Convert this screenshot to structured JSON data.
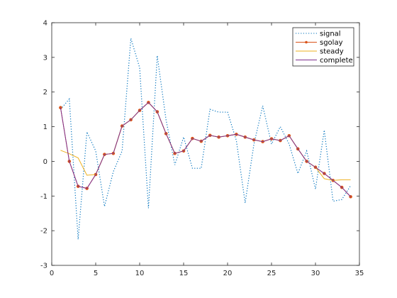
{
  "chart_data": {
    "type": "line",
    "title": "",
    "xlabel": "",
    "ylabel": "",
    "xlim": [
      0,
      35
    ],
    "ylim": [
      -3,
      4
    ],
    "xticks": [
      0,
      5,
      10,
      15,
      20,
      25,
      30,
      35
    ],
    "yticks": [
      -3,
      -2,
      -1,
      0,
      1,
      2,
      3,
      4
    ],
    "grid": false,
    "legend_position": "top-right",
    "x": [
      1,
      2,
      3,
      4,
      5,
      6,
      7,
      8,
      9,
      10,
      11,
      12,
      13,
      14,
      15,
      16,
      17,
      18,
      19,
      20,
      21,
      22,
      23,
      24,
      25,
      26,
      27,
      28,
      29,
      30,
      31,
      32,
      33,
      34
    ],
    "series": [
      {
        "name": "signal",
        "color": "#0072bd",
        "style": "dotted",
        "values": [
          1.5,
          1.8,
          -2.25,
          0.85,
          0.3,
          -1.3,
          -0.3,
          0.3,
          3.55,
          2.7,
          -1.35,
          3.05,
          1.2,
          -0.1,
          0.7,
          -0.2,
          -0.2,
          1.5,
          1.42,
          1.42,
          0.6,
          -1.2,
          0.5,
          1.6,
          0.5,
          1.0,
          0.5,
          -0.35,
          0.3,
          -0.8,
          0.9,
          -1.15,
          -1.1,
          -0.7
        ]
      },
      {
        "name": "sgolay",
        "color": "#d95319",
        "style": "solid-markers",
        "values": [
          1.55,
          0.0,
          -0.72,
          -0.78,
          -0.38,
          0.2,
          0.23,
          1.02,
          1.2,
          1.47,
          1.7,
          1.43,
          0.8,
          0.23,
          0.3,
          0.66,
          0.58,
          0.75,
          0.7,
          0.74,
          0.78,
          0.7,
          0.62,
          0.57,
          0.65,
          0.6,
          0.74,
          0.36,
          0.0,
          -0.17,
          -0.35,
          -0.55,
          -0.75,
          -1.02
        ]
      },
      {
        "name": "steady",
        "color": "#edb120",
        "style": "solid",
        "values": [
          0.32,
          0.22,
          0.1,
          -0.4,
          -0.38,
          0.2,
          0.23,
          1.02,
          1.2,
          1.47,
          1.7,
          1.43,
          0.8,
          0.23,
          0.3,
          0.66,
          0.58,
          0.75,
          0.7,
          0.74,
          0.78,
          0.7,
          0.62,
          0.57,
          0.65,
          0.6,
          0.74,
          0.36,
          0.0,
          -0.17,
          -0.5,
          -0.55,
          -0.53,
          -0.53
        ]
      },
      {
        "name": "complete",
        "color": "#7e2f8e",
        "style": "solid",
        "values": [
          1.55,
          0.0,
          -0.72,
          -0.78,
          -0.38,
          0.2,
          0.23,
          1.02,
          1.2,
          1.47,
          1.7,
          1.43,
          0.8,
          0.23,
          0.3,
          0.66,
          0.58,
          0.75,
          0.7,
          0.74,
          0.78,
          0.7,
          0.62,
          0.57,
          0.65,
          0.6,
          0.74,
          0.36,
          0.0,
          -0.17,
          -0.35,
          -0.55,
          -0.75,
          -1.02
        ]
      }
    ]
  }
}
